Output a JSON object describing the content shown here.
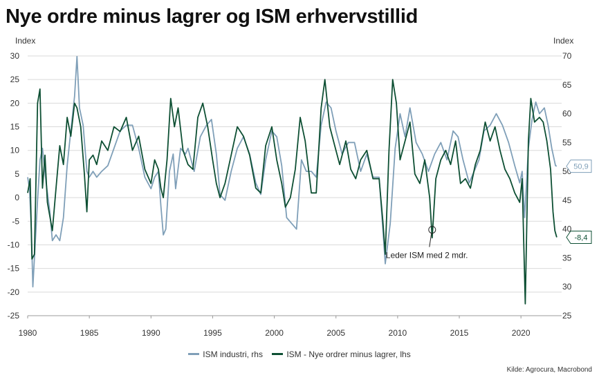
{
  "title": "Nye ordre minus lagrer og ISM erhvervstillid",
  "left_unit": "Index",
  "right_unit": "Index",
  "source": "Kilde: Agrocura, Macrobond",
  "colors": {
    "ism": "#7f9fb8",
    "spread": "#0d4f33",
    "grid": "#d9d9d9"
  },
  "chart_data": {
    "type": "line",
    "x_ticks": [
      "1980",
      "1985",
      "1990",
      "1995",
      "2000",
      "2005",
      "2010",
      "2015",
      "2020"
    ],
    "xlim": [
      1980,
      2023.3
    ],
    "left_axis": {
      "ylim": [
        -25,
        30
      ],
      "ticks": [
        "30",
        "25",
        "20",
        "15",
        "10",
        "5",
        "0",
        "-5",
        "-10",
        "-15",
        "-20",
        "-25"
      ]
    },
    "right_axis": {
      "ylim": [
        25,
        70
      ],
      "ticks": [
        "70",
        "65",
        "60",
        "55",
        "50",
        "45",
        "40",
        "35",
        "30",
        "25"
      ]
    },
    "series": [
      {
        "name": "ISM industri, rhs",
        "axis": "right",
        "color": "#7f9fb8",
        "points": [
          [
            1980.0,
            49
          ],
          [
            1980.15,
            47
          ],
          [
            1980.3,
            40
          ],
          [
            1980.42,
            30
          ],
          [
            1980.6,
            37
          ],
          [
            1980.8,
            45
          ],
          [
            1981.0,
            52
          ],
          [
            1981.2,
            54
          ],
          [
            1981.5,
            48
          ],
          [
            1981.8,
            43
          ],
          [
            1982.0,
            38
          ],
          [
            1982.3,
            39
          ],
          [
            1982.6,
            38
          ],
          [
            1982.9,
            42
          ],
          [
            1983.2,
            51
          ],
          [
            1983.4,
            55
          ],
          [
            1983.6,
            59
          ],
          [
            1983.8,
            63
          ],
          [
            1984.0,
            69.9
          ],
          [
            1984.2,
            61
          ],
          [
            1984.5,
            58
          ],
          [
            1984.8,
            50
          ],
          [
            1985.0,
            49
          ],
          [
            1985.3,
            50
          ],
          [
            1985.6,
            49
          ],
          [
            1986.0,
            50
          ],
          [
            1986.5,
            51
          ],
          [
            1987.0,
            54
          ],
          [
            1987.5,
            57
          ],
          [
            1988.0,
            58
          ],
          [
            1988.5,
            58
          ],
          [
            1989.0,
            54
          ],
          [
            1989.5,
            49
          ],
          [
            1990.0,
            47
          ],
          [
            1990.3,
            49
          ],
          [
            1990.6,
            50
          ],
          [
            1990.8,
            44
          ],
          [
            1991.0,
            39
          ],
          [
            1991.2,
            40
          ],
          [
            1991.5,
            50
          ],
          [
            1991.8,
            53
          ],
          [
            1992.0,
            47
          ],
          [
            1992.4,
            54
          ],
          [
            1992.8,
            53
          ],
          [
            1993.0,
            54
          ],
          [
            1993.5,
            50
          ],
          [
            1994.0,
            56
          ],
          [
            1994.5,
            58
          ],
          [
            1994.9,
            59
          ],
          [
            1995.3,
            53
          ],
          [
            1995.6,
            46
          ],
          [
            1996.0,
            45
          ],
          [
            1996.5,
            50
          ],
          [
            1997.0,
            54
          ],
          [
            1997.5,
            56
          ],
          [
            1998.0,
            53
          ],
          [
            1998.5,
            48
          ],
          [
            1998.9,
            46
          ],
          [
            1999.3,
            52
          ],
          [
            1999.8,
            57
          ],
          [
            2000.2,
            56
          ],
          [
            2000.6,
            51
          ],
          [
            2001.0,
            42
          ],
          [
            2001.4,
            41
          ],
          [
            2001.8,
            40
          ],
          [
            2002.2,
            52
          ],
          [
            2002.6,
            50
          ],
          [
            2003.0,
            50
          ],
          [
            2003.4,
            49
          ],
          [
            2003.8,
            58
          ],
          [
            2004.2,
            62
          ],
          [
            2004.6,
            61
          ],
          [
            2005.0,
            57
          ],
          [
            2005.5,
            53
          ],
          [
            2006.0,
            55
          ],
          [
            2006.5,
            55
          ],
          [
            2007.0,
            50
          ],
          [
            2007.5,
            53
          ],
          [
            2008.0,
            49
          ],
          [
            2008.5,
            49
          ],
          [
            2008.8,
            40
          ],
          [
            2009.0,
            34
          ],
          [
            2009.4,
            41
          ],
          [
            2009.8,
            54
          ],
          [
            2010.2,
            60
          ],
          [
            2010.6,
            56
          ],
          [
            2011.0,
            61
          ],
          [
            2011.5,
            55
          ],
          [
            2012.0,
            53
          ],
          [
            2012.5,
            50
          ],
          [
            2013.0,
            53
          ],
          [
            2013.5,
            55
          ],
          [
            2014.0,
            52
          ],
          [
            2014.5,
            57
          ],
          [
            2014.9,
            56
          ],
          [
            2015.3,
            52
          ],
          [
            2015.8,
            48
          ],
          [
            2016.2,
            50
          ],
          [
            2016.6,
            52
          ],
          [
            2017.0,
            57
          ],
          [
            2017.5,
            58
          ],
          [
            2018.0,
            60
          ],
          [
            2018.5,
            58
          ],
          [
            2019.0,
            55
          ],
          [
            2019.5,
            51
          ],
          [
            2019.9,
            48
          ],
          [
            2020.1,
            50
          ],
          [
            2020.3,
            42
          ],
          [
            2020.6,
            54
          ],
          [
            2020.9,
            59
          ],
          [
            2021.2,
            62
          ],
          [
            2021.5,
            60
          ],
          [
            2021.9,
            61
          ],
          [
            2022.2,
            58
          ],
          [
            2022.5,
            54
          ],
          [
            2022.8,
            51
          ],
          [
            2022.9,
            50.9
          ]
        ]
      },
      {
        "name": "ISM - Nye ordrer minus lagrer, lhs",
        "axis": "left",
        "color": "#0d4f33",
        "points": [
          [
            1980.0,
            1
          ],
          [
            1980.2,
            4
          ],
          [
            1980.35,
            -13
          ],
          [
            1980.55,
            -12
          ],
          [
            1980.8,
            20
          ],
          [
            1981.0,
            23
          ],
          [
            1981.2,
            2
          ],
          [
            1981.4,
            9
          ],
          [
            1981.6,
            -1
          ],
          [
            1981.8,
            -4
          ],
          [
            1982.0,
            -7
          ],
          [
            1982.3,
            2
          ],
          [
            1982.6,
            11
          ],
          [
            1982.9,
            7
          ],
          [
            1983.2,
            17
          ],
          [
            1983.5,
            13
          ],
          [
            1983.8,
            20
          ],
          [
            1984.0,
            19
          ],
          [
            1984.3,
            15
          ],
          [
            1984.6,
            5
          ],
          [
            1984.8,
            -3
          ],
          [
            1985.0,
            8
          ],
          [
            1985.3,
            9
          ],
          [
            1985.6,
            7
          ],
          [
            1986.0,
            12
          ],
          [
            1986.5,
            10
          ],
          [
            1987.0,
            15
          ],
          [
            1987.5,
            14
          ],
          [
            1988.0,
            17
          ],
          [
            1988.5,
            10
          ],
          [
            1989.0,
            13
          ],
          [
            1989.5,
            6
          ],
          [
            1990.0,
            3
          ],
          [
            1990.3,
            8
          ],
          [
            1990.6,
            6
          ],
          [
            1990.8,
            2
          ],
          [
            1991.0,
            0
          ],
          [
            1991.3,
            8
          ],
          [
            1991.6,
            21
          ],
          [
            1991.9,
            15
          ],
          [
            1992.2,
            19
          ],
          [
            1992.6,
            10
          ],
          [
            1993.0,
            7
          ],
          [
            1993.4,
            6
          ],
          [
            1993.8,
            17
          ],
          [
            1994.2,
            20
          ],
          [
            1994.6,
            15
          ],
          [
            1995.0,
            8
          ],
          [
            1995.3,
            3
          ],
          [
            1995.6,
            0
          ],
          [
            1996.0,
            3
          ],
          [
            1996.5,
            9
          ],
          [
            1997.0,
            15
          ],
          [
            1997.5,
            13
          ],
          [
            1998.0,
            9
          ],
          [
            1998.5,
            2
          ],
          [
            1998.9,
            1
          ],
          [
            1999.3,
            11
          ],
          [
            1999.8,
            15
          ],
          [
            2000.2,
            8
          ],
          [
            2000.6,
            3
          ],
          [
            2000.9,
            -2
          ],
          [
            2001.3,
            0
          ],
          [
            2001.7,
            6
          ],
          [
            2002.1,
            17
          ],
          [
            2002.5,
            12
          ],
          [
            2003.0,
            1
          ],
          [
            2003.4,
            1
          ],
          [
            2003.8,
            19
          ],
          [
            2004.1,
            25
          ],
          [
            2004.5,
            15
          ],
          [
            2004.9,
            11
          ],
          [
            2005.3,
            7
          ],
          [
            2005.8,
            12
          ],
          [
            2006.2,
            6
          ],
          [
            2006.6,
            4
          ],
          [
            2007.0,
            8
          ],
          [
            2007.5,
            10
          ],
          [
            2008.0,
            4
          ],
          [
            2008.5,
            4
          ],
          [
            2008.8,
            -5
          ],
          [
            2009.0,
            -12
          ],
          [
            2009.3,
            10
          ],
          [
            2009.6,
            25
          ],
          [
            2009.9,
            20
          ],
          [
            2010.2,
            8
          ],
          [
            2010.6,
            12
          ],
          [
            2011.0,
            16
          ],
          [
            2011.4,
            5
          ],
          [
            2011.8,
            3
          ],
          [
            2012.2,
            8
          ],
          [
            2012.6,
            0
          ],
          [
            2012.8,
            -8.5
          ],
          [
            2013.1,
            4
          ],
          [
            2013.5,
            8
          ],
          [
            2013.9,
            10
          ],
          [
            2014.3,
            7
          ],
          [
            2014.7,
            12
          ],
          [
            2015.1,
            3
          ],
          [
            2015.5,
            4
          ],
          [
            2015.9,
            2
          ],
          [
            2016.3,
            7
          ],
          [
            2016.7,
            10
          ],
          [
            2017.1,
            16
          ],
          [
            2017.5,
            12
          ],
          [
            2017.9,
            15
          ],
          [
            2018.3,
            10
          ],
          [
            2018.7,
            6
          ],
          [
            2019.1,
            4
          ],
          [
            2019.5,
            1
          ],
          [
            2019.9,
            -1
          ],
          [
            2020.1,
            4
          ],
          [
            2020.35,
            -22.5
          ],
          [
            2020.6,
            12
          ],
          [
            2020.8,
            21
          ],
          [
            2021.1,
            16
          ],
          [
            2021.5,
            17
          ],
          [
            2021.8,
            16
          ],
          [
            2022.1,
            12
          ],
          [
            2022.4,
            6
          ],
          [
            2022.6,
            -3
          ],
          [
            2022.75,
            -7
          ],
          [
            2022.9,
            -8.4
          ]
        ]
      }
    ],
    "end_labels": [
      {
        "series": 0,
        "text": "50,9"
      },
      {
        "series": 1,
        "text": "-8,4"
      }
    ],
    "annotation": {
      "text": "Leder ISM med 2 mdr.",
      "x": 2012.8,
      "y": -6.8
    }
  }
}
